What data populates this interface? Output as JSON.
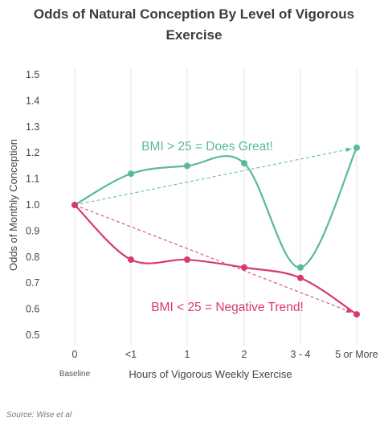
{
  "title": {
    "line1": "Odds of Natural Conception By Level of Vigorous",
    "line2": "Exercise"
  },
  "source": "Source: Wise et al",
  "chart_data": {
    "type": "line",
    "title": "Odds of Natural Conception By Level of Vigorous Exercise",
    "xlabel": "Hours of Vigorous Weekly Exercise",
    "ylabel": "Odds of Monthly Conception",
    "categories": [
      "0",
      "<1",
      "1",
      "2",
      "3 - 4",
      "5 or More"
    ],
    "x_sublabels": {
      "0": "Baseline"
    },
    "ylim": [
      0.5,
      1.5
    ],
    "yticks": [
      "0.5",
      "0.6",
      "0.7",
      "0.8",
      "0.9",
      "1.0",
      "1.1",
      "1.2",
      "1.3",
      "1.4",
      "1.5"
    ],
    "grid": "vertical",
    "series": [
      {
        "values": [
          1.0,
          1.12,
          1.15,
          1.16,
          0.76,
          1.22
        ],
        "color": "#5ab8a0"
      },
      {
        "values": [
          1.0,
          0.79,
          0.79,
          0.76,
          0.72,
          0.58
        ],
        "color": "#d63a72"
      }
    ],
    "trendlines": [
      {
        "from": [
          0,
          1.0
        ],
        "to": [
          5,
          1.22
        ],
        "color": "#5ab8a0",
        "style": "dashed"
      },
      {
        "from": [
          0,
          1.0
        ],
        "to": [
          5,
          0.58
        ],
        "color": "#d63a72",
        "style": "dashed"
      }
    ],
    "annotations": [
      {
        "text": "BMI > 25 = Does Great!",
        "color": "#5ab8a0"
      },
      {
        "text": "BMI < 25 = Negative Trend!",
        "color": "#d63a72"
      }
    ]
  }
}
